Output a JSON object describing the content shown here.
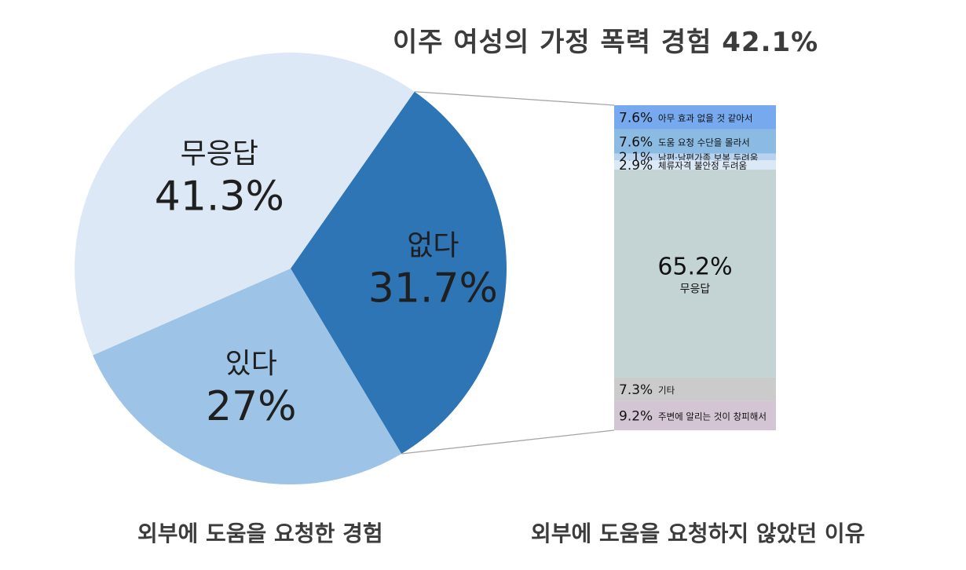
{
  "title": "이주 여성의 가정 폭력 경험 42.1%",
  "captions": {
    "left": "외부에 도움을 요청한 경험",
    "right": "외부에 도움을 요청하지 않았던 이유"
  },
  "chart_data": [
    {
      "type": "pie",
      "title": "외부에 도움을 요청한 경험",
      "slices": [
        {
          "label": "무응답",
          "value": 41.3,
          "value_label": "41.3%",
          "color": "#dce8f5",
          "text_color": "#1f1f1f"
        },
        {
          "label": "없다",
          "value": 31.7,
          "value_label": "31.7%",
          "color": "#2e75b6",
          "text_color": "#1f1f1f"
        },
        {
          "label": "있다",
          "value": 27,
          "value_label": "27%",
          "color": "#9dc3e6",
          "text_color": "#1f1f1f"
        }
      ]
    },
    {
      "type": "bar",
      "subtype": "stacked-100",
      "title": "외부에 도움을 요청하지 않았던 이유",
      "segments": [
        {
          "label": "아무 효과 없을 것 같아서",
          "value": 7.6,
          "value_label": "7.6%",
          "color": "#77a9ee",
          "label_bold": true
        },
        {
          "label": "도움 요청 수단을 몰라서",
          "value": 7.6,
          "value_label": "7.6%",
          "color": "#8bbbe3",
          "label_bold": true
        },
        {
          "label": "남편·남편가족 보복 두려움",
          "value": 2.1,
          "value_label": "2.1%",
          "color": "#b9d3ee",
          "label_bold": false
        },
        {
          "label": "체류자격 불안정 두려움",
          "value": 2.9,
          "value_label": "2.9%",
          "color": "#dbe8f5",
          "label_bold": false
        },
        {
          "label": "무응답",
          "value": 65.2,
          "value_label": "65.2%",
          "color": "#c4d4d4",
          "label_bold": false
        },
        {
          "label": "기타",
          "value": 7.3,
          "value_label": "7.3%",
          "color": "#cbcbcb",
          "label_bold": false
        },
        {
          "label": "주변에 알리는 것이 창피해서",
          "value": 9.2,
          "value_label": "9.2%",
          "color": "#d3c5d3",
          "label_bold": false
        }
      ]
    }
  ]
}
